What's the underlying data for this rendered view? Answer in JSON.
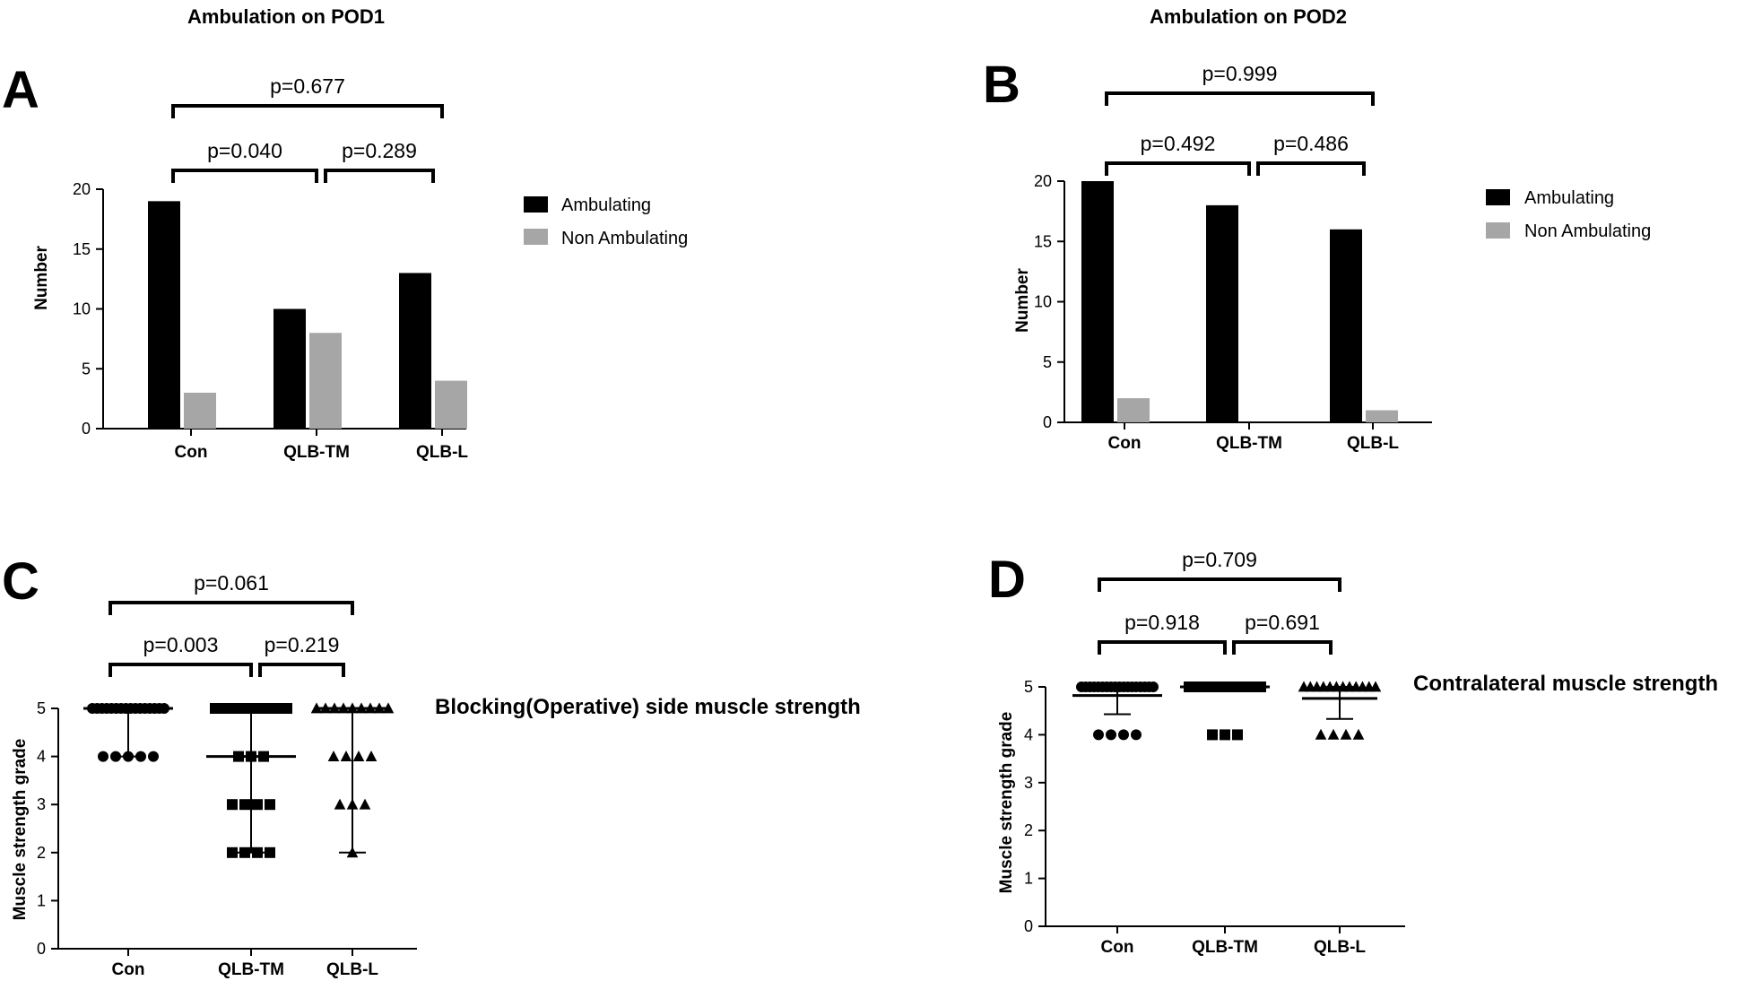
{
  "chart_data": [
    {
      "panel": "A",
      "type": "bar",
      "title": "Ambulation on POD1",
      "xlabel": "",
      "ylabel": "Number",
      "categories": [
        "Con",
        "QLB-TM",
        "QLB-L"
      ],
      "series": [
        {
          "name": "Ambulating",
          "values": [
            19,
            10,
            13
          ],
          "color": "#000000"
        },
        {
          "name": "Non Ambulating",
          "values": [
            3,
            8,
            4
          ],
          "color": "#a6a6a6"
        }
      ],
      "ylim": [
        0,
        20
      ],
      "yticks": [
        0,
        5,
        10,
        15,
        20
      ],
      "legend": "right",
      "grid": false,
      "comparisons": [
        {
          "from": 0,
          "to": 1,
          "label": "p=0.040",
          "level": 1
        },
        {
          "from": 1,
          "to": 2,
          "label": "p=0.289",
          "level": 1
        },
        {
          "from": 0,
          "to": 2,
          "label": "p=0.677",
          "level": 2
        }
      ]
    },
    {
      "panel": "B",
      "type": "bar",
      "title": "Ambulation on POD2",
      "xlabel": "",
      "ylabel": "Number",
      "categories": [
        "Con",
        "QLB-TM",
        "QLB-L"
      ],
      "series": [
        {
          "name": "Ambulating",
          "values": [
            20,
            18,
            16
          ],
          "color": "#000000"
        },
        {
          "name": "Non Ambulating",
          "values": [
            2,
            0,
            1
          ],
          "color": "#a6a6a6"
        }
      ],
      "ylim": [
        0,
        20
      ],
      "yticks": [
        0,
        5,
        10,
        15,
        20
      ],
      "legend": "right",
      "grid": false,
      "comparisons": [
        {
          "from": 0,
          "to": 1,
          "label": "p=0.492",
          "level": 1
        },
        {
          "from": 1,
          "to": 2,
          "label": "p=0.486",
          "level": 1
        },
        {
          "from": 0,
          "to": 2,
          "label": "p=0.999",
          "level": 2
        }
      ]
    },
    {
      "panel": "C",
      "type": "scatter",
      "title": "Blocking(Operative) side muscle strength",
      "xlabel": "",
      "ylabel": "Muscle strength grade",
      "categories": [
        "Con",
        "QLB-TM",
        "QLB-L"
      ],
      "groups": [
        {
          "category": "Con",
          "marker": "circle",
          "points": [
            {
              "y": 5,
              "count": 16
            },
            {
              "y": 4,
              "count": 5
            }
          ],
          "center": 5,
          "error": [
            4,
            5
          ]
        },
        {
          "category": "QLB-TM",
          "marker": "square",
          "points": [
            {
              "y": 5,
              "count": 16
            },
            {
              "y": 4,
              "count": 3
            },
            {
              "y": 3,
              "count": 4
            },
            {
              "y": 2,
              "count": 4
            }
          ],
          "center": 4,
          "error": [
            2,
            5
          ]
        },
        {
          "category": "QLB-L",
          "marker": "triangle",
          "points": [
            {
              "y": 5,
              "count": 9
            },
            {
              "y": 4,
              "count": 4
            },
            {
              "y": 3,
              "count": 3
            },
            {
              "y": 2,
              "count": 1
            }
          ],
          "center": 5,
          "error": [
            2,
            5
          ]
        }
      ],
      "ylim": [
        0,
        5
      ],
      "yticks": [
        0,
        1,
        2,
        3,
        4,
        5
      ],
      "grid": false,
      "comparisons": [
        {
          "from": 0,
          "to": 1,
          "label": "p=0.003",
          "level": 1
        },
        {
          "from": 1,
          "to": 2,
          "label": "p=0.219",
          "level": 1
        },
        {
          "from": 0,
          "to": 2,
          "label": "p=0.061",
          "level": 2
        }
      ]
    },
    {
      "panel": "D",
      "type": "scatter",
      "title": "Contralateral muscle strength",
      "xlabel": "",
      "ylabel": "Muscle strength grade",
      "categories": [
        "Con",
        "QLB-TM",
        "QLB-L"
      ],
      "groups": [
        {
          "category": "Con",
          "marker": "circle",
          "points": [
            {
              "y": 5,
              "count": 18
            },
            {
              "y": 4,
              "count": 4
            }
          ],
          "center": 4.82,
          "error": [
            4.43,
            5
          ]
        },
        {
          "category": "QLB-TM",
          "marker": "square",
          "points": [
            {
              "y": 5,
              "count": 18
            },
            {
              "y": 4,
              "count": 3
            }
          ],
          "center": 5,
          "error": [
            5,
            5
          ]
        },
        {
          "category": "QLB-L",
          "marker": "triangle",
          "points": [
            {
              "y": 5,
              "count": 12
            },
            {
              "y": 4,
              "count": 4
            }
          ],
          "center": 4.76,
          "error": [
            4.33,
            5
          ]
        }
      ],
      "ylim": [
        0,
        5
      ],
      "yticks": [
        0,
        1,
        2,
        3,
        4,
        5
      ],
      "grid": false,
      "comparisons": [
        {
          "from": 0,
          "to": 1,
          "label": "p=0.918",
          "level": 1
        },
        {
          "from": 1,
          "to": 2,
          "label": "p=0.691",
          "level": 1
        },
        {
          "from": 0,
          "to": 2,
          "label": "p=0.709",
          "level": 2
        }
      ]
    }
  ]
}
